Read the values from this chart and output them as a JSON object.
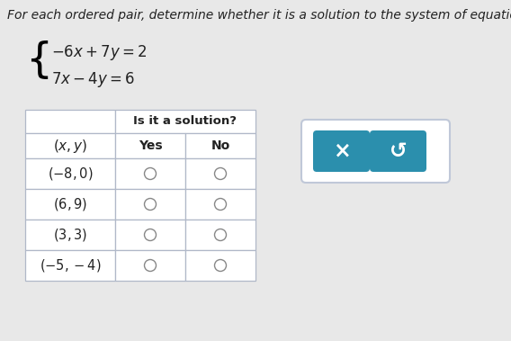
{
  "title": "For each ordered pair, determine whether it is a solution to the system of equations.",
  "eq1": "$-6x+7y=2$",
  "eq2": "$7x-4y=6$",
  "header_col": "$(x, y)$",
  "header_yes": "Yes",
  "header_no": "No",
  "header_span": "Is it a solution?",
  "rows": [
    "$(-8, 0)$",
    "$(6, 9)$",
    "$(3, 3)$",
    "$(-5, -4)$"
  ],
  "bg_color": "#e8e8e8",
  "table_bg": "#ffffff",
  "btn_color": "#2b8fad",
  "btn_x_label": "×",
  "btn_undo_label": "↺",
  "circle_color": "#888888",
  "grid_color": "#b0b8c8",
  "text_color": "#222222",
  "header_span_fontsize": 9.5,
  "header_fontsize": 10,
  "row_label_fontsize": 10.5,
  "eq_fontsize": 12,
  "title_fontsize": 10
}
